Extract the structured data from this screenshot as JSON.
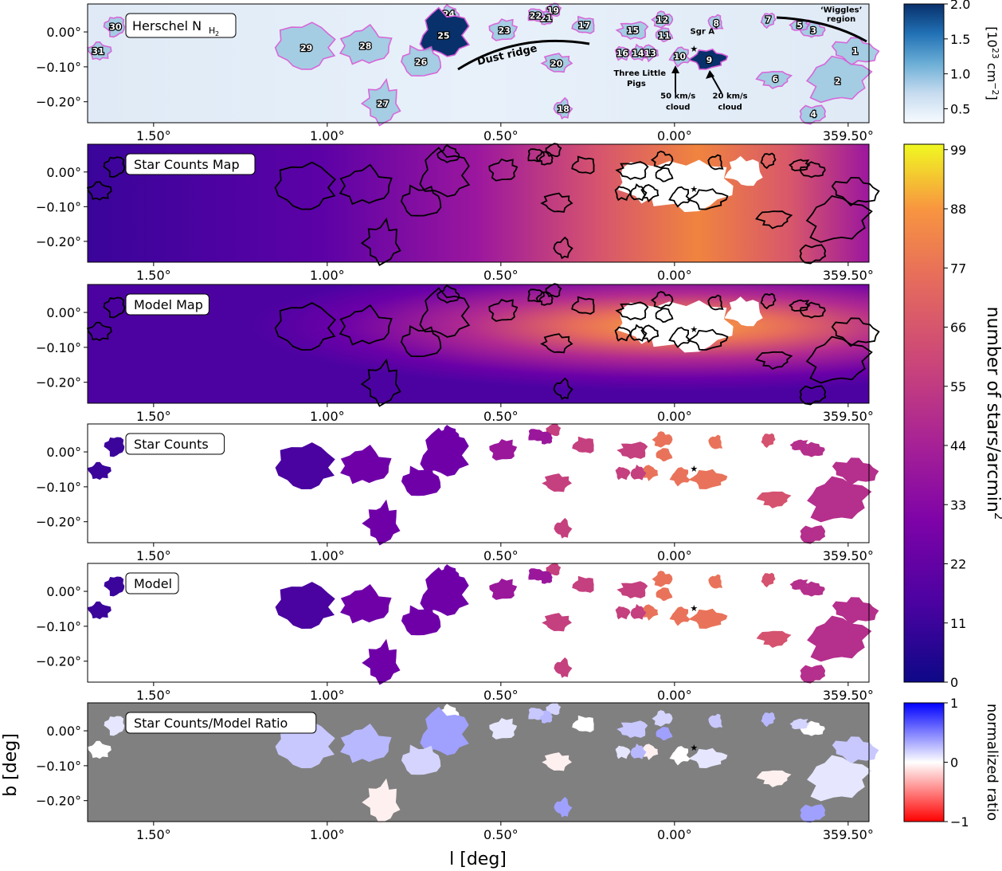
{
  "chart_data": {
    "type": "heatmap",
    "xlabel": "l [deg]",
    "ylabel": "b [deg]",
    "xticks": [
      "1.50°",
      "1.00°",
      "0.50°",
      "0.00°",
      "359.50°"
    ],
    "xtick_values": [
      1.5,
      1.0,
      0.5,
      0.0,
      -0.5
    ],
    "yticks": [
      "0.00°",
      "−0.10°",
      "−0.20°"
    ],
    "ytick_values": [
      0.0,
      -0.1,
      -0.2
    ],
    "xlim": [
      1.69,
      -0.56
    ],
    "ylim": [
      -0.26,
      0.08
    ],
    "sgr_a_star": {
      "l": -0.056,
      "b": -0.046
    },
    "panels": [
      {
        "name": "herschel",
        "label_main": "Herschel N",
        "label_sub": "H",
        "label_subsub": "2",
        "colormap": "Blues"
      },
      {
        "name": "star-counts-map",
        "label": "Star Counts Map",
        "colormap": "plasma"
      },
      {
        "name": "model-map",
        "label": "Model Map",
        "colormap": "plasma"
      },
      {
        "name": "star-counts",
        "label": "Star Counts",
        "colormap": "plasma"
      },
      {
        "name": "model",
        "label": "Model",
        "colormap": "plasma"
      },
      {
        "name": "ratio",
        "label": "Star Counts/Model Ratio",
        "colormap": "bwr_r"
      }
    ],
    "colorbars": [
      {
        "name": "column-density",
        "label_prefix": "[10",
        "label_exp": "23",
        "label_suffix": " cm",
        "label_exp2": "−2",
        "label_end": "]",
        "range": [
          0.3,
          2.0
        ],
        "ticks": [
          "2.0",
          "1.5",
          "1.0",
          "0.5"
        ]
      },
      {
        "name": "star-density",
        "label": "number of stars/arcmin",
        "label_exp": "2",
        "range": [
          0,
          100
        ],
        "ticks": [
          "99",
          "88",
          "77",
          "66",
          "55",
          "44",
          "33",
          "22",
          "11",
          "0"
        ]
      },
      {
        "name": "ratio",
        "label": "normalized ratio",
        "range": [
          -1,
          1
        ],
        "ticks": [
          "1",
          "0",
          "−1"
        ]
      }
    ],
    "clouds": [
      {
        "id": "1",
        "l": -0.52,
        "b": -0.055
      },
      {
        "id": "2",
        "l": -0.47,
        "b": -0.14
      },
      {
        "id": "3",
        "l": -0.4,
        "b": 0.005
      },
      {
        "id": "4",
        "l": -0.4,
        "b": -0.235
      },
      {
        "id": "5",
        "l": -0.36,
        "b": 0.02
      },
      {
        "id": "6",
        "l": -0.29,
        "b": -0.135
      },
      {
        "id": "7",
        "l": -0.27,
        "b": 0.035
      },
      {
        "id": "8",
        "l": -0.12,
        "b": 0.025
      },
      {
        "id": "9",
        "l": -0.1,
        "b": -0.08
      },
      {
        "id": "10",
        "l": -0.015,
        "b": -0.07
      },
      {
        "id": "11",
        "l": 0.03,
        "b": -0.01
      },
      {
        "id": "12",
        "l": 0.035,
        "b": 0.035
      },
      {
        "id": "13",
        "l": 0.07,
        "b": -0.06
      },
      {
        "id": "14",
        "l": 0.105,
        "b": -0.06
      },
      {
        "id": "15",
        "l": 0.12,
        "b": 0.005
      },
      {
        "id": "16",
        "l": 0.15,
        "b": -0.06
      },
      {
        "id": "17",
        "l": 0.26,
        "b": 0.02
      },
      {
        "id": "18",
        "l": 0.32,
        "b": -0.22
      },
      {
        "id": "19",
        "l": 0.35,
        "b": 0.062
      },
      {
        "id": "20",
        "l": 0.34,
        "b": -0.09
      },
      {
        "id": "21",
        "l": 0.37,
        "b": 0.04
      },
      {
        "id": "22",
        "l": 0.4,
        "b": 0.047
      },
      {
        "id": "23",
        "l": 0.49,
        "b": 0.005
      },
      {
        "id": "24",
        "l": 0.65,
        "b": 0.052
      },
      {
        "id": "25",
        "l": 0.665,
        "b": -0.01
      },
      {
        "id": "26",
        "l": 0.73,
        "b": -0.085
      },
      {
        "id": "27",
        "l": 0.84,
        "b": -0.205
      },
      {
        "id": "28",
        "l": 0.89,
        "b": -0.04
      },
      {
        "id": "29",
        "l": 1.06,
        "b": -0.045
      },
      {
        "id": "30",
        "l": 1.61,
        "b": 0.015
      },
      {
        "id": "31",
        "l": 1.66,
        "b": -0.055
      }
    ],
    "annotations": [
      {
        "name": "dust-ridge",
        "text": "Dust ridge",
        "l": 0.48,
        "b": -0.075
      },
      {
        "name": "three-little-pigs-1",
        "text": "Three Little",
        "l": 0.1,
        "b": -0.125
      },
      {
        "name": "three-little-pigs-2",
        "text": "Pigs",
        "l": 0.11,
        "b": -0.155
      },
      {
        "name": "sgr-a",
        "text": "Sgr A",
        "text_exp": "*",
        "l": -0.085,
        "b": -0.005
      },
      {
        "name": "50kms-1",
        "text": "50 km/s",
        "l": -0.01,
        "b": -0.19
      },
      {
        "name": "50kms-2",
        "text": "cloud",
        "l": -0.01,
        "b": -0.222
      },
      {
        "name": "20kms-1",
        "text": "20 km/s",
        "l": -0.16,
        "b": -0.19
      },
      {
        "name": "20kms-2",
        "text": "cloud",
        "l": -0.16,
        "b": -0.222
      },
      {
        "name": "wiggles-1",
        "text": "‘Wiggles’",
        "l": -0.48,
        "b": 0.056
      },
      {
        "name": "wiggles-2",
        "text": "region",
        "l": -0.48,
        "b": 0.03
      }
    ]
  }
}
